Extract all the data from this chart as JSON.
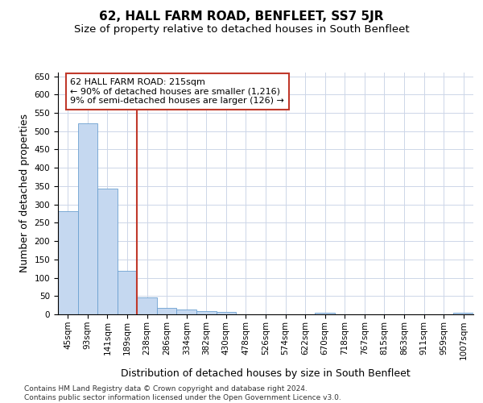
{
  "title": "62, HALL FARM ROAD, BENFLEET, SS7 5JR",
  "subtitle": "Size of property relative to detached houses in South Benfleet",
  "xlabel": "Distribution of detached houses by size in South Benfleet",
  "ylabel": "Number of detached properties",
  "footnote": "Contains HM Land Registry data © Crown copyright and database right 2024.\nContains public sector information licensed under the Open Government Licence v3.0.",
  "bar_color": "#c5d8f0",
  "bar_edge_color": "#6ca0d0",
  "vline_color": "#c0392b",
  "vline_x": 3.5,
  "annotation_text_line1": "62 HALL FARM ROAD: 215sqm",
  "annotation_text_line2": "← 90% of detached houses are smaller (1,216)",
  "annotation_text_line3": "9% of semi-detached houses are larger (126) →",
  "categories": [
    "45sqm",
    "93sqm",
    "141sqm",
    "189sqm",
    "238sqm",
    "286sqm",
    "334sqm",
    "382sqm",
    "430sqm",
    "478sqm",
    "526sqm",
    "574sqm",
    "622sqm",
    "670sqm",
    "718sqm",
    "767sqm",
    "815sqm",
    "863sqm",
    "911sqm",
    "959sqm",
    "1007sqm"
  ],
  "values": [
    281,
    521,
    344,
    119,
    47,
    18,
    13,
    9,
    6,
    0,
    0,
    0,
    0,
    5,
    0,
    0,
    0,
    0,
    0,
    0,
    5
  ],
  "ylim": [
    0,
    660
  ],
  "yticks": [
    0,
    50,
    100,
    150,
    200,
    250,
    300,
    350,
    400,
    450,
    500,
    550,
    600,
    650
  ],
  "background_color": "#ffffff",
  "grid_color": "#cdd6e8",
  "title_fontsize": 11,
  "subtitle_fontsize": 9.5,
  "axis_label_fontsize": 9,
  "tick_fontsize": 7.5,
  "footnote_fontsize": 6.5
}
